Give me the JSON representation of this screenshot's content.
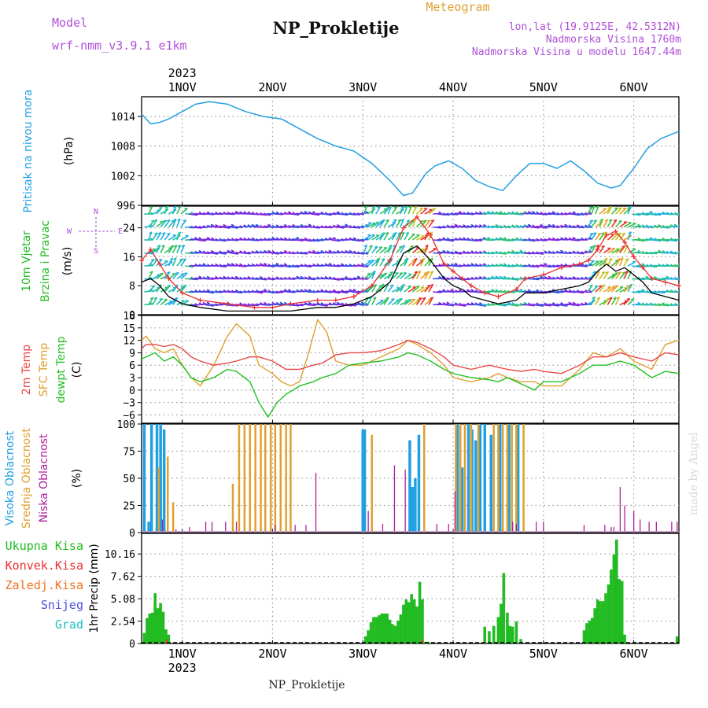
{
  "header": {
    "model_label": "Model",
    "model_name": "wrf-nmm_v3.9.1  e1km",
    "title": "NP_Prokletije",
    "subtitle": "Meteogram",
    "coords": "lon,lat (19.9125E, 42.5312N)",
    "altitude": "Nadmorska Visina 1760m",
    "model_altitude": "Nadmorska Visina u modelu 1647.44m",
    "watermark": "made by Angel",
    "footer": "NP_Prokletije"
  },
  "colors": {
    "pressure": "#22a0e0",
    "wind_speed": "#000000",
    "wind_gust": "#e83030",
    "temp2m": "#e84848",
    "sfc": "#e0a030",
    "dewpt": "#22c022",
    "high_cloud": "#20a0e0",
    "mid_cloud": "#e0a030",
    "low_cloud": "#b0209a",
    "precip": "#22bb22",
    "conv": "#e83030",
    "frz": "#f07020",
    "snow": "#5050e0",
    "grad": "#20c0c0",
    "label_purple": "#b050d8",
    "label_orange": "#e0a030"
  },
  "chart_data": [
    {
      "type": "line",
      "name": "pressure",
      "ylabel_left": "Pritisak na nivou mora",
      "unit": "(hPa)",
      "ylim": [
        996,
        1018
      ],
      "yticks": [
        "1014",
        "1008",
        "1002",
        "996"
      ],
      "x_top": [
        "1NOV",
        "2NOV",
        "3NOV",
        "4NOV",
        "5NOV",
        "6NOV"
      ],
      "year": "2023",
      "x_start_day": 0.55,
      "x_end_day": 6.5,
      "x": [
        0.55,
        0.65,
        0.75,
        0.85,
        1.0,
        1.15,
        1.3,
        1.5,
        1.7,
        1.9,
        2.1,
        2.3,
        2.5,
        2.7,
        2.9,
        3.1,
        3.3,
        3.45,
        3.55,
        3.7,
        3.8,
        3.95,
        4.1,
        4.25,
        4.4,
        4.55,
        4.7,
        4.85,
        5.0,
        5.15,
        5.3,
        5.45,
        5.6,
        5.75,
        5.85,
        6.0,
        6.15,
        6.3,
        6.5
      ],
      "values": [
        1014.5,
        1012.5,
        1012.8,
        1013.5,
        1015.0,
        1016.5,
        1017.0,
        1016.5,
        1015.0,
        1014.0,
        1013.5,
        1011.5,
        1009.5,
        1008.0,
        1007.0,
        1004.5,
        1001.0,
        998.0,
        998.5,
        1002.5,
        1004.0,
        1005.0,
        1003.5,
        1001.0,
        999.8,
        999.0,
        1002.0,
        1004.5,
        1004.5,
        1003.5,
        1005.0,
        1003.0,
        1000.5,
        999.5,
        1000.0,
        1003.5,
        1007.5,
        1009.5,
        1011.0
      ]
    },
    {
      "type": "line",
      "name": "wind",
      "ylabel_left": [
        "10m Vjetar",
        "Brzina i Pravac"
      ],
      "unit": "(m/s)",
      "ylim": [
        0,
        30
      ],
      "yticks": [
        "24",
        "16",
        "8",
        "0"
      ],
      "compass": [
        "N",
        "E",
        "S",
        "W"
      ],
      "series": [
        {
          "key": "speed",
          "x": [
            0.55,
            0.65,
            0.75,
            0.85,
            1.0,
            1.2,
            1.5,
            1.8,
            2.0,
            2.2,
            2.5,
            2.7,
            2.9,
            3.1,
            3.3,
            3.45,
            3.6,
            3.75,
            3.9,
            4.0,
            4.1,
            4.2,
            4.35,
            4.5,
            4.7,
            4.8,
            5.0,
            5.2,
            5.4,
            5.5,
            5.6,
            5.7,
            5.8,
            5.9,
            6.0,
            6.1,
            6.2,
            6.35,
            6.5
          ],
          "values": [
            9,
            10,
            8,
            5,
            3,
            2,
            1,
            1,
            1,
            1,
            2,
            2,
            3,
            5,
            9,
            17,
            19,
            15,
            10,
            8,
            7,
            5,
            4,
            3,
            4,
            6,
            6,
            7,
            8,
            9,
            12,
            14,
            12,
            13,
            11,
            9,
            6,
            5,
            4
          ]
        },
        {
          "key": "gust",
          "x": [
            0.55,
            0.65,
            0.75,
            0.85,
            1.0,
            1.2,
            1.5,
            1.8,
            2.0,
            2.2,
            2.5,
            2.7,
            2.9,
            3.1,
            3.3,
            3.45,
            3.6,
            3.75,
            3.9,
            4.0,
            4.1,
            4.2,
            4.35,
            4.5,
            4.7,
            4.8,
            5.0,
            5.2,
            5.4,
            5.5,
            5.6,
            5.7,
            5.8,
            5.9,
            6.0,
            6.1,
            6.2,
            6.35,
            6.5
          ],
          "values": [
            15,
            18,
            14,
            10,
            6,
            4,
            3,
            2,
            2,
            3,
            4,
            4,
            5,
            8,
            15,
            24,
            27,
            22,
            14,
            12,
            10,
            8,
            6,
            5,
            7,
            10,
            11,
            13,
            14,
            15,
            18,
            22,
            23,
            20,
            16,
            13,
            10,
            9,
            8
          ]
        }
      ]
    },
    {
      "type": "line",
      "name": "temperature",
      "ylabel_left": [
        "2m Temp",
        "SFC Temp",
        "dewpt Temp"
      ],
      "unit": "(C)",
      "ylim": [
        -8,
        18
      ],
      "yticks": [
        "18",
        "15",
        "12",
        "9",
        "6",
        "3",
        "0",
        "−3",
        "−6"
      ],
      "series": [
        {
          "key": "t2m",
          "x": [
            0.55,
            0.6,
            0.7,
            0.8,
            0.9,
            1.0,
            1.1,
            1.2,
            1.35,
            1.5,
            1.6,
            1.75,
            1.85,
            2.0,
            2.15,
            2.3,
            2.45,
            2.55,
            2.7,
            2.85,
            3.0,
            3.2,
            3.4,
            3.5,
            3.6,
            3.75,
            3.9,
            4.0,
            4.2,
            4.4,
            4.5,
            4.6,
            4.75,
            4.9,
            5.0,
            5.2,
            5.4,
            5.55,
            5.7,
            5.85,
            6.0,
            6.2,
            6.35,
            6.5
          ],
          "values": [
            10,
            11,
            11,
            10.5,
            11,
            10,
            8,
            7,
            6,
            6.5,
            7,
            8,
            8,
            7,
            5,
            5,
            6,
            6.5,
            8.5,
            9,
            9,
            9.5,
            11,
            12,
            11.5,
            10,
            8,
            6,
            5,
            6,
            5.5,
            5,
            4.5,
            5,
            4.5,
            4,
            6,
            8,
            8,
            9,
            8,
            7,
            9,
            8.5
          ]
        },
        {
          "key": "sfc",
          "x": [
            0.55,
            0.6,
            0.7,
            0.8,
            0.9,
            1.0,
            1.1,
            1.2,
            1.35,
            1.5,
            1.6,
            1.75,
            1.85,
            2.0,
            2.1,
            2.2,
            2.3,
            2.4,
            2.5,
            2.6,
            2.7,
            2.85,
            3.0,
            3.2,
            3.4,
            3.5,
            3.6,
            3.75,
            3.9,
            4.0,
            4.2,
            4.4,
            4.5,
            4.6,
            4.75,
            4.9,
            5.0,
            5.2,
            5.4,
            5.55,
            5.7,
            5.85,
            6.0,
            6.2,
            6.35,
            6.5
          ],
          "values": [
            12,
            13,
            10,
            9,
            10,
            6,
            3,
            1,
            6,
            13,
            16,
            13,
            6,
            4,
            2,
            1,
            2,
            9,
            17,
            14,
            7,
            6,
            6,
            8,
            10,
            12,
            11,
            9,
            6,
            3,
            2,
            3,
            4,
            3,
            2,
            2,
            1,
            1,
            5,
            9,
            8,
            10,
            7,
            5,
            11,
            12
          ]
        },
        {
          "key": "dewpt",
          "x": [
            0.55,
            0.6,
            0.7,
            0.8,
            0.9,
            1.0,
            1.1,
            1.2,
            1.35,
            1.5,
            1.6,
            1.75,
            1.85,
            1.95,
            2.05,
            2.15,
            2.3,
            2.45,
            2.55,
            2.7,
            2.85,
            3.0,
            3.2,
            3.4,
            3.5,
            3.6,
            3.75,
            3.9,
            4.0,
            4.2,
            4.4,
            4.5,
            4.6,
            4.75,
            4.9,
            5.0,
            5.2,
            5.4,
            5.55,
            5.7,
            5.85,
            6.0,
            6.2,
            6.35,
            6.5
          ],
          "values": [
            7.5,
            8,
            9,
            7,
            8,
            6,
            3,
            2,
            3,
            5,
            4.5,
            2,
            -3,
            -6.5,
            -3,
            -1,
            1,
            2,
            3,
            4,
            6,
            6.5,
            7,
            8,
            9,
            8.5,
            7,
            5,
            4,
            3,
            2.5,
            2,
            3,
            1.5,
            0,
            2,
            2,
            4,
            6,
            6,
            7,
            6,
            3,
            4.5,
            4
          ]
        }
      ]
    },
    {
      "type": "bar",
      "name": "cloud_cover",
      "ylabel_left": [
        "Visoka Oblacnost",
        "Srednja Oblacnost",
        "Niska Oblacnost"
      ],
      "unit": "(%)",
      "ylim": [
        0,
        100
      ],
      "yticks": [
        "100",
        "75",
        "50",
        "25",
        "0"
      ],
      "series": [
        {
          "key": "high",
          "x": [
            0.58,
            0.63,
            0.66,
            0.72,
            0.76,
            0.8,
            3.0,
            3.02,
            3.52,
            3.55,
            3.58,
            3.62,
            4.05,
            4.1,
            4.17,
            4.21,
            4.25,
            4.3,
            4.35,
            4.42,
            4.52,
            4.62,
            4.72
          ],
          "values": [
            100,
            10,
            100,
            100,
            100,
            95,
            95,
            95,
            85,
            42,
            50,
            90,
            100,
            60,
            100,
            95,
            85,
            100,
            100,
            90,
            100,
            100,
            100
          ]
        },
        {
          "key": "mid",
          "x": [
            0.74,
            0.84,
            0.9,
            1.56,
            1.63,
            1.69,
            1.75,
            1.81,
            1.87,
            1.92,
            1.98,
            2.03,
            2.09,
            2.15,
            2.2,
            3.1,
            3.68,
            4.03,
            4.08,
            4.13,
            4.2,
            4.28,
            4.45,
            4.5,
            4.55,
            4.6,
            4.65,
            4.7,
            4.78
          ],
          "values": [
            60,
            70,
            28,
            45,
            100,
            100,
            100,
            100,
            100,
            100,
            100,
            100,
            100,
            100,
            100,
            90,
            100,
            100,
            100,
            100,
            100,
            100,
            100,
            100,
            100,
            100,
            100,
            100,
            100
          ]
        },
        {
          "key": "low",
          "x": [
            0.78,
            0.93,
            1.08,
            1.26,
            1.33,
            1.48,
            1.6,
            2.03,
            2.25,
            2.37,
            2.48,
            3.06,
            3.22,
            3.35,
            3.47,
            3.82,
            3.95,
            4.02,
            4.66,
            4.7,
            4.92,
            5.0,
            5.45,
            5.68,
            5.75,
            5.78,
            5.85,
            5.9,
            6.0,
            6.07,
            6.17,
            6.25,
            6.42,
            6.48
          ],
          "values": [
            12,
            3,
            5,
            10,
            10,
            10,
            10,
            7,
            7,
            7,
            55,
            20,
            8,
            62,
            58,
            8,
            8,
            38,
            10,
            8,
            10,
            10,
            7,
            7,
            5,
            5,
            42,
            25,
            20,
            12,
            10,
            10,
            10,
            10
          ]
        }
      ]
    },
    {
      "type": "bar",
      "name": "precipitation",
      "ylabel_left": "1hr Precip (mm)",
      "legend": [
        "Ukupna Kisa",
        "Konvek.Kisa",
        "Zaledj.Kisa",
        "Snijeg",
        "Grad"
      ],
      "ylim": [
        0,
        12.5
      ],
      "yticks": [
        "10.16",
        "7.62",
        "5.08",
        "2.54",
        "0"
      ],
      "x_bottom": [
        "1NOV",
        "2NOV",
        "3NOV",
        "4NOV",
        "5NOV",
        "6NOV"
      ],
      "year": "2023",
      "series": [
        {
          "key": "total",
          "x": [
            0.58,
            0.61,
            0.64,
            0.67,
            0.7,
            0.73,
            0.76,
            0.79,
            0.82,
            0.85,
            3.03,
            3.06,
            3.09,
            3.12,
            3.15,
            3.18,
            3.21,
            3.24,
            3.27,
            3.3,
            3.33,
            3.36,
            3.39,
            3.42,
            3.45,
            3.48,
            3.51,
            3.54,
            3.57,
            3.6,
            3.63,
            3.66,
            3.69,
            3.72,
            4.35,
            4.4,
            4.45,
            4.5,
            4.53,
            4.56,
            4.6,
            4.63,
            4.66,
            4.7,
            4.75,
            5.45,
            5.48,
            5.51,
            5.54,
            5.57,
            5.6,
            5.63,
            5.66,
            5.69,
            5.72,
            5.75,
            5.78,
            5.81,
            5.84,
            5.87,
            5.9,
            6.48
          ],
          "values": [
            1.2,
            2.9,
            3.4,
            3.5,
            5.7,
            4.0,
            4.6,
            3.6,
            1.6,
            1.0,
            0.8,
            1.5,
            2.4,
            3.0,
            3.0,
            3.2,
            3.4,
            3.4,
            3.4,
            2.7,
            2.2,
            2.0,
            2.6,
            3.3,
            4.4,
            5.0,
            4.7,
            5.6,
            5.0,
            4.2,
            7.0,
            5.0,
            0.2,
            0.2,
            1.9,
            1.4,
            2.0,
            3.0,
            4.5,
            8.0,
            3.5,
            2.0,
            1.9,
            2.5,
            0.5,
            1.5,
            2.3,
            2.6,
            2.9,
            4.0,
            5.0,
            4.8,
            4.8,
            5.7,
            6.7,
            8.4,
            10.1,
            11.8,
            7.3,
            7.1,
            1.0,
            0.8
          ]
        }
      ]
    }
  ]
}
